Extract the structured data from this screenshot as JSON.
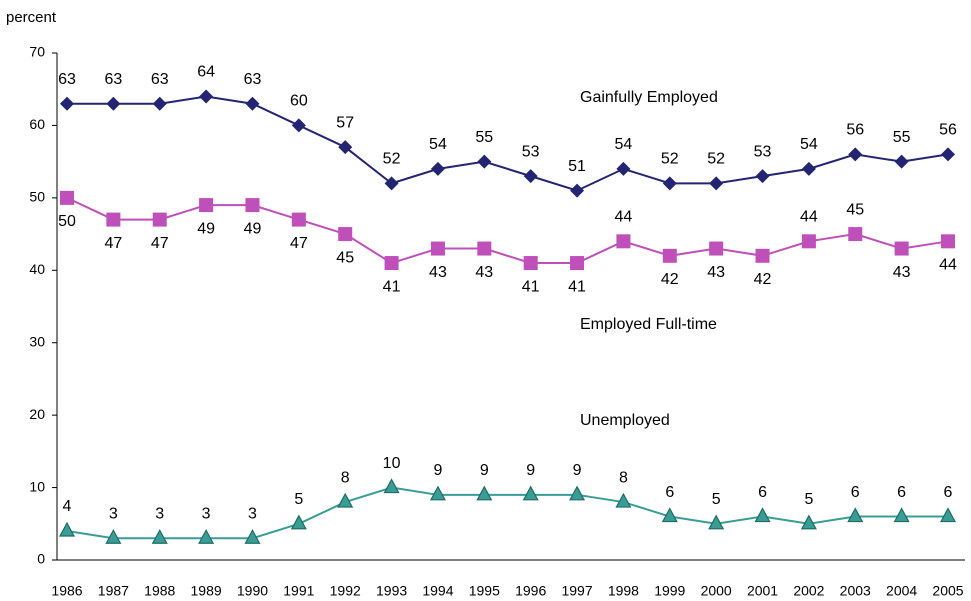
{
  "chart_data": {
    "type": "line",
    "y_label": "percent",
    "categories": [
      "1986",
      "1987",
      "1988",
      "1989",
      "1990",
      "1991",
      "1992",
      "1993",
      "1994",
      "1995",
      "1996",
      "1997",
      "1998",
      "1999",
      "2000",
      "2001",
      "2002",
      "2003",
      "2004",
      "2005"
    ],
    "series": [
      {
        "name": "Gainfully Employed",
        "color": "#232472",
        "marker": "diamond",
        "values": [
          63,
          63,
          63,
          64,
          63,
          60,
          57,
          52,
          54,
          55,
          53,
          51,
          54,
          52,
          52,
          53,
          54,
          56,
          55,
          56
        ]
      },
      {
        "name": "Employed Full-time",
        "color": "#bf4fb9",
        "marker": "square",
        "values": [
          50,
          47,
          47,
          49,
          49,
          47,
          45,
          41,
          43,
          43,
          41,
          41,
          44,
          42,
          43,
          42,
          44,
          45,
          43,
          44
        ]
      },
      {
        "name": "Unemployed",
        "color": "#3a9d95",
        "marker": "triangle",
        "values": [
          4,
          3,
          3,
          3,
          3,
          5,
          8,
          10,
          9,
          9,
          9,
          9,
          8,
          6,
          5,
          6,
          5,
          6,
          6,
          6
        ]
      }
    ],
    "ylim": [
      0,
      70
    ],
    "yticks": [
      0,
      10,
      20,
      30,
      40,
      50,
      60,
      70
    ],
    "grid": false
  }
}
